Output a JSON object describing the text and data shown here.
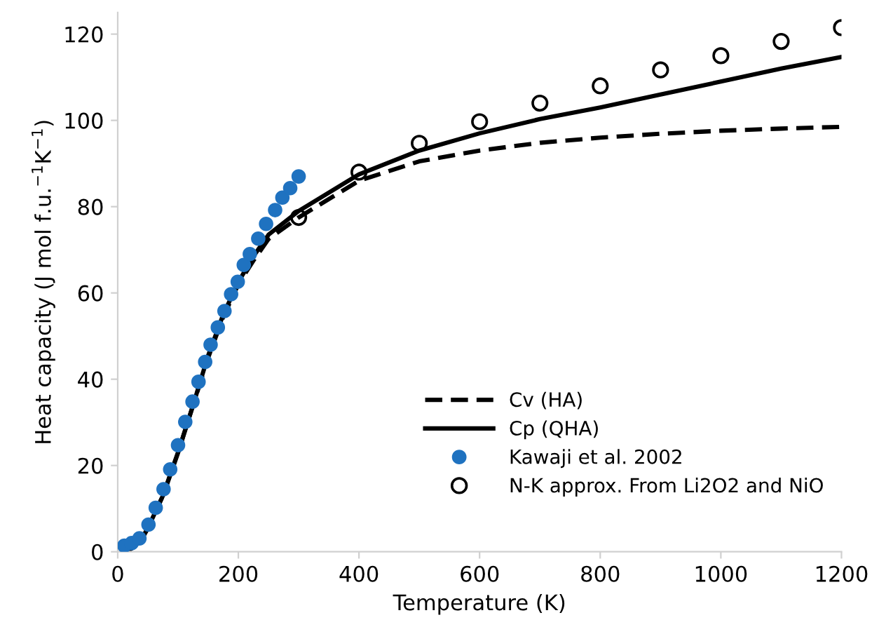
{
  "chart_data": {
    "type": "line",
    "xlabel": "Temperature (K)",
    "ylabel": "Heat capacity (J mol f.u.$^{−1}$K$^{−1}$)",
    "xlim": [
      0,
      1200
    ],
    "ylim": [
      0,
      125
    ],
    "xticks": [
      0,
      200,
      400,
      600,
      800,
      1000,
      1200
    ],
    "yticks": [
      0,
      20,
      40,
      60,
      80,
      100,
      120
    ],
    "grid": false,
    "legend": "bottom right",
    "series": [
      {
        "name": "Cv (HA)",
        "color": "#000000",
        "line_style": "dashed",
        "marker": "none",
        "x": [
          10,
          20,
          30,
          40,
          50,
          75,
          100,
          125,
          150,
          175,
          200,
          225,
          250,
          300,
          400,
          500,
          600,
          700,
          800,
          900,
          1000,
          1100,
          1200
        ],
        "values": [
          0,
          0.5,
          1.5,
          3,
          5.5,
          13,
          23,
          34,
          45,
          54.5,
          62,
          67.5,
          72.5,
          77.5,
          86,
          90.5,
          93,
          94.8,
          96,
          96.9,
          97.6,
          98.1,
          98.5
        ]
      },
      {
        "name": "Cp (QHA)",
        "color": "#000000",
        "line_style": "solid",
        "marker": "none",
        "x": [
          10,
          20,
          30,
          40,
          50,
          75,
          100,
          125,
          150,
          175,
          200,
          225,
          250,
          300,
          400,
          500,
          600,
          700,
          800,
          900,
          1000,
          1100,
          1200
        ],
        "values": [
          0,
          0.5,
          1.5,
          3,
          5.5,
          13,
          23,
          34,
          45.5,
          55,
          62.5,
          68.5,
          73.5,
          79,
          87.5,
          93,
          97,
          100.3,
          103,
          106,
          109,
          112,
          114.7
        ]
      },
      {
        "name": "Kawaji et al. 2002",
        "type": "scatter",
        "color": "#1f72c0",
        "marker": "circle",
        "x": [
          11,
          23,
          36,
          51,
          63,
          76,
          87,
          100,
          112,
          124,
          134,
          145,
          154,
          166,
          177,
          188,
          199,
          209,
          219,
          233,
          246,
          261,
          273,
          286,
          300
        ],
        "values": [
          1.4,
          2,
          3.1,
          6.3,
          10.2,
          14.5,
          19.1,
          24.7,
          30.1,
          34.8,
          39.4,
          44,
          48,
          52,
          55.8,
          59.7,
          62.6,
          66.5,
          69,
          72.6,
          76,
          79.2,
          82.1,
          84.3,
          87
        ]
      },
      {
        "name": "N-K approx. From Li2O2 and NiO",
        "type": "scatter",
        "color": "#000000",
        "marker": "circle",
        "x": [
          300,
          400,
          500,
          600,
          700,
          800,
          900,
          1000,
          1100,
          1200
        ],
        "values": [
          77.5,
          88,
          94.7,
          99.7,
          104,
          108,
          111.7,
          115,
          118.3,
          121.5
        ]
      }
    ]
  }
}
